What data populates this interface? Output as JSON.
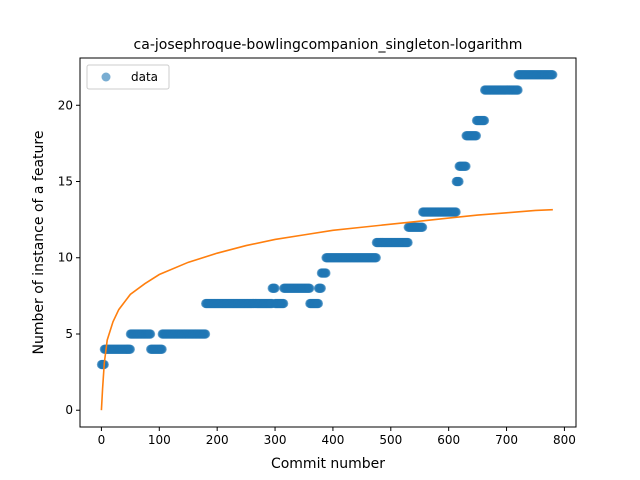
{
  "chart_data": {
    "type": "scatter",
    "title": "ca-josephroque-bowlingcompanion_singleton-logarithm",
    "xlabel": "Commit number",
    "ylabel": "Number of instance of a feature",
    "xlim": [
      -37,
      820
    ],
    "ylim": [
      -1.1,
      23.1
    ],
    "xticks": [
      0,
      100,
      200,
      300,
      400,
      500,
      600,
      700,
      800
    ],
    "yticks": [
      0,
      5,
      10,
      15,
      20
    ],
    "grid": false,
    "legend": {
      "position": "top-left",
      "entries": [
        {
          "label": "data",
          "color": "#1f77b4",
          "marker": "circle"
        }
      ]
    },
    "series": [
      {
        "name": "data",
        "kind": "scatter",
        "color": "#1f77b4",
        "segments": [
          {
            "x_start": 0,
            "x_end": 5,
            "y": 3
          },
          {
            "x_start": 5,
            "x_end": 50,
            "y": 4
          },
          {
            "x_start": 50,
            "x_end": 85,
            "y": 5
          },
          {
            "x_start": 85,
            "x_end": 105,
            "y": 4
          },
          {
            "x_start": 105,
            "x_end": 180,
            "y": 5
          },
          {
            "x_start": 180,
            "x_end": 295,
            "y": 7
          },
          {
            "x_start": 295,
            "x_end": 300,
            "y": 8
          },
          {
            "x_start": 300,
            "x_end": 315,
            "y": 7
          },
          {
            "x_start": 315,
            "x_end": 360,
            "y": 8
          },
          {
            "x_start": 360,
            "x_end": 375,
            "y": 7
          },
          {
            "x_start": 375,
            "x_end": 380,
            "y": 8
          },
          {
            "x_start": 380,
            "x_end": 388,
            "y": 9
          },
          {
            "x_start": 388,
            "x_end": 475,
            "y": 10
          },
          {
            "x_start": 475,
            "x_end": 530,
            "y": 11
          },
          {
            "x_start": 530,
            "x_end": 555,
            "y": 12
          },
          {
            "x_start": 555,
            "x_end": 613,
            "y": 13
          },
          {
            "x_start": 613,
            "x_end": 618,
            "y": 15
          },
          {
            "x_start": 618,
            "x_end": 630,
            "y": 16
          },
          {
            "x_start": 630,
            "x_end": 648,
            "y": 18
          },
          {
            "x_start": 648,
            "x_end": 662,
            "y": 19
          },
          {
            "x_start": 662,
            "x_end": 720,
            "y": 21
          },
          {
            "x_start": 720,
            "x_end": 780,
            "y": 22
          }
        ]
      },
      {
        "name": "",
        "kind": "line",
        "color": "#ff7f0e",
        "model": "logarithm",
        "x": [
          0,
          2,
          5,
          10,
          20,
          30,
          50,
          75,
          100,
          150,
          200,
          250,
          300,
          350,
          400,
          450,
          500,
          550,
          600,
          650,
          700,
          750,
          780
        ],
        "y": [
          0,
          1.4,
          3.1,
          4.6,
          5.8,
          6.6,
          7.6,
          8.3,
          8.9,
          9.7,
          10.3,
          10.8,
          11.2,
          11.5,
          11.8,
          12.0,
          12.2,
          12.4,
          12.6,
          12.8,
          12.95,
          13.1,
          13.15
        ]
      }
    ]
  }
}
